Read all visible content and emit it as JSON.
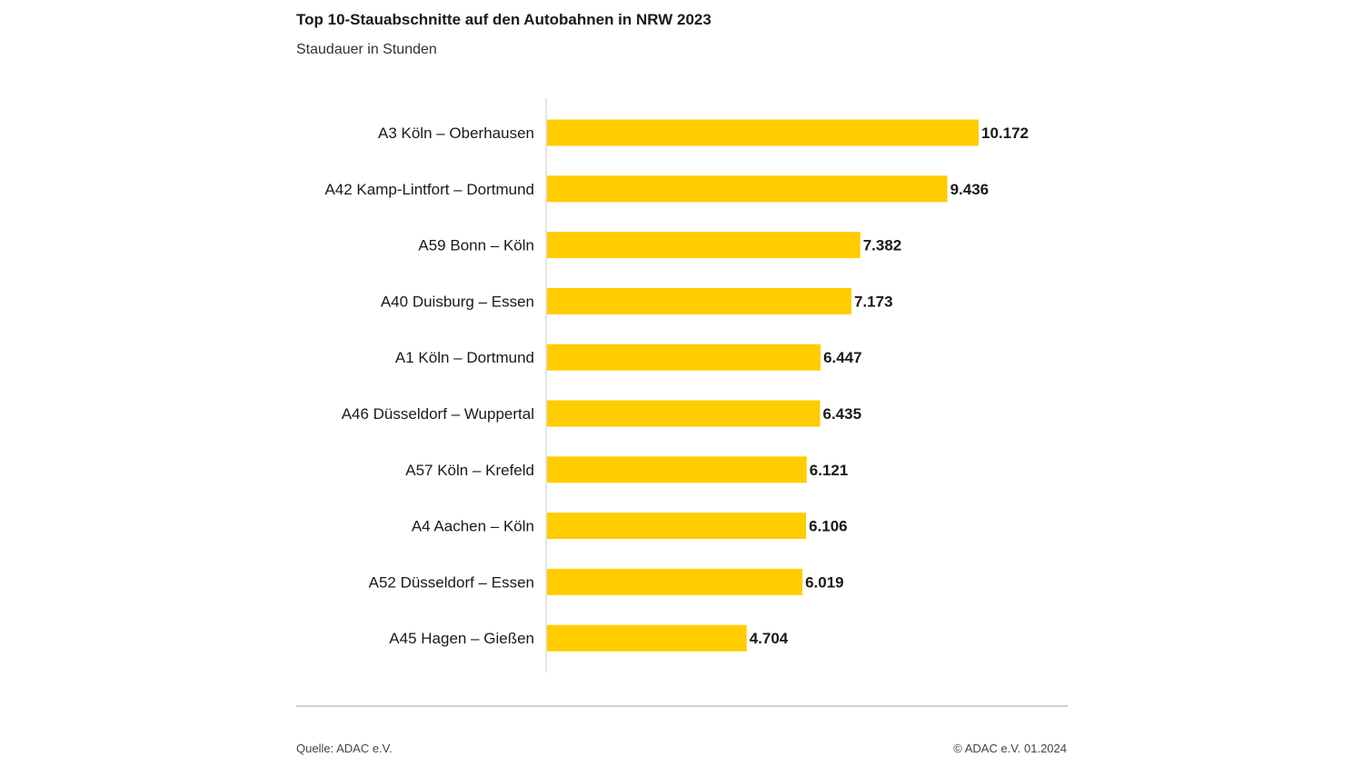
{
  "chart_data": {
    "type": "bar",
    "orientation": "horizontal",
    "title": "Top 10-Stauabschnitte auf den Autobahnen in NRW 2023",
    "subtitle": "Staudauer in Stunden",
    "categories": [
      "A3 Köln – Oberhausen",
      "A42 Kamp-Lintfort – Dortmund",
      "A59 Bonn – Köln",
      "A40 Duisburg – Essen",
      "A1 Köln – Dortmund",
      "A46 Düsseldorf – Wuppertal",
      "A57 Köln – Krefeld",
      "A4 Aachen – Köln",
      "A52 Düsseldorf – Essen",
      "A45 Hagen – Gießen"
    ],
    "values": [
      10172,
      9436,
      7382,
      7173,
      6447,
      6435,
      6121,
      6106,
      6019,
      4704
    ],
    "value_labels": [
      "10.172",
      "9.436",
      "7.382",
      "7.173",
      "6.447",
      "6.435",
      "6.121",
      "6.106",
      "6.019",
      "4.704"
    ],
    "xlim": [
      0,
      10172
    ],
    "grid": false,
    "bar_color": "#ffcc00"
  },
  "footer": {
    "source": "Quelle: ADAC e.V.",
    "copyright": "© ADAC e.V. 01.2024"
  },
  "colors": {
    "bar": "#ffcc00",
    "axis": "#cccccc",
    "rule": "#cfcfcf"
  }
}
